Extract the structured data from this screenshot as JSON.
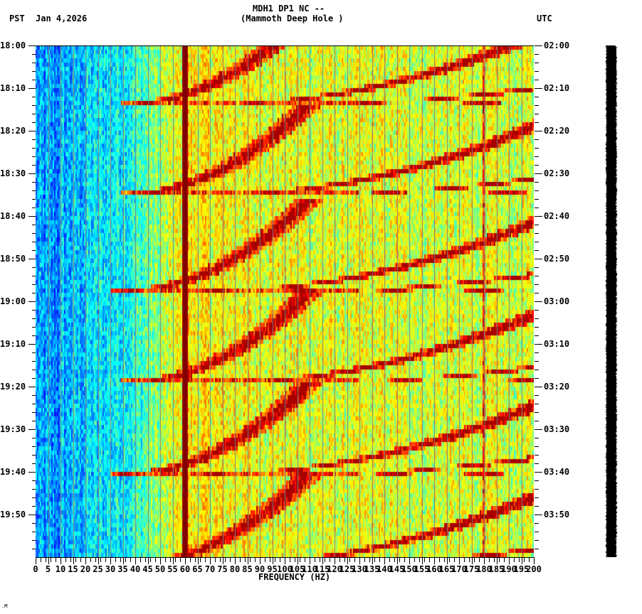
{
  "header": {
    "station": "MDH1 DP1 NC --",
    "site": "(Mammoth Deep Hole )",
    "left_tz": "PST",
    "date": "Jan 4,2026",
    "right_tz": "UTC"
  },
  "footer": {
    "mark": ".M"
  },
  "chart_data": {
    "type": "heatmap",
    "title": "MDH1 DP1 NC -- (Mammoth Deep Hole )",
    "subtitle": "Jan 4,2026",
    "xlabel": "FREQUENCY (HZ)",
    "ylabel_left": "PST",
    "ylabel_right": "UTC",
    "xlim": [
      0,
      200
    ],
    "x_ticks": [
      0,
      5,
      10,
      15,
      20,
      25,
      30,
      35,
      40,
      45,
      50,
      55,
      60,
      65,
      70,
      75,
      80,
      85,
      90,
      95,
      100,
      105,
      110,
      115,
      120,
      125,
      130,
      135,
      140,
      145,
      150,
      155,
      160,
      165,
      170,
      175,
      180,
      185,
      190,
      195,
      200
    ],
    "y_ticks_left": [
      "18:00",
      "18:10",
      "18:20",
      "18:30",
      "18:40",
      "18:50",
      "19:00",
      "19:10",
      "19:20",
      "19:30",
      "19:40",
      "19:50"
    ],
    "y_ticks_right": [
      "02:00",
      "02:10",
      "02:20",
      "02:30",
      "02:40",
      "02:50",
      "03:00",
      "03:10",
      "03:20",
      "03:30",
      "03:40",
      "03:50"
    ],
    "time_range_minutes": 120,
    "minor_tick_minutes": 2,
    "grid": {
      "vertical_every_hz": 5,
      "color": "#808080"
    },
    "colormap": "jet",
    "features": {
      "persistent_line_hz": 60,
      "weak_line_hz": 180,
      "event_minutes": [
        13.8,
        35.0,
        57.5,
        79.2,
        100.5
      ],
      "event_period_minutes": 21.4,
      "arc_harmonics_start_hz": [
        38,
        76,
        114
      ],
      "arc_sweep_minutes": 15,
      "background_low_freq": "blue/cyan (low power) 0-40 Hz",
      "background_high_freq": "green/yellow (moderate power) 60-200 Hz"
    },
    "side_trace": {
      "description": "black seismogram trace strip",
      "color": "#000000"
    }
  }
}
